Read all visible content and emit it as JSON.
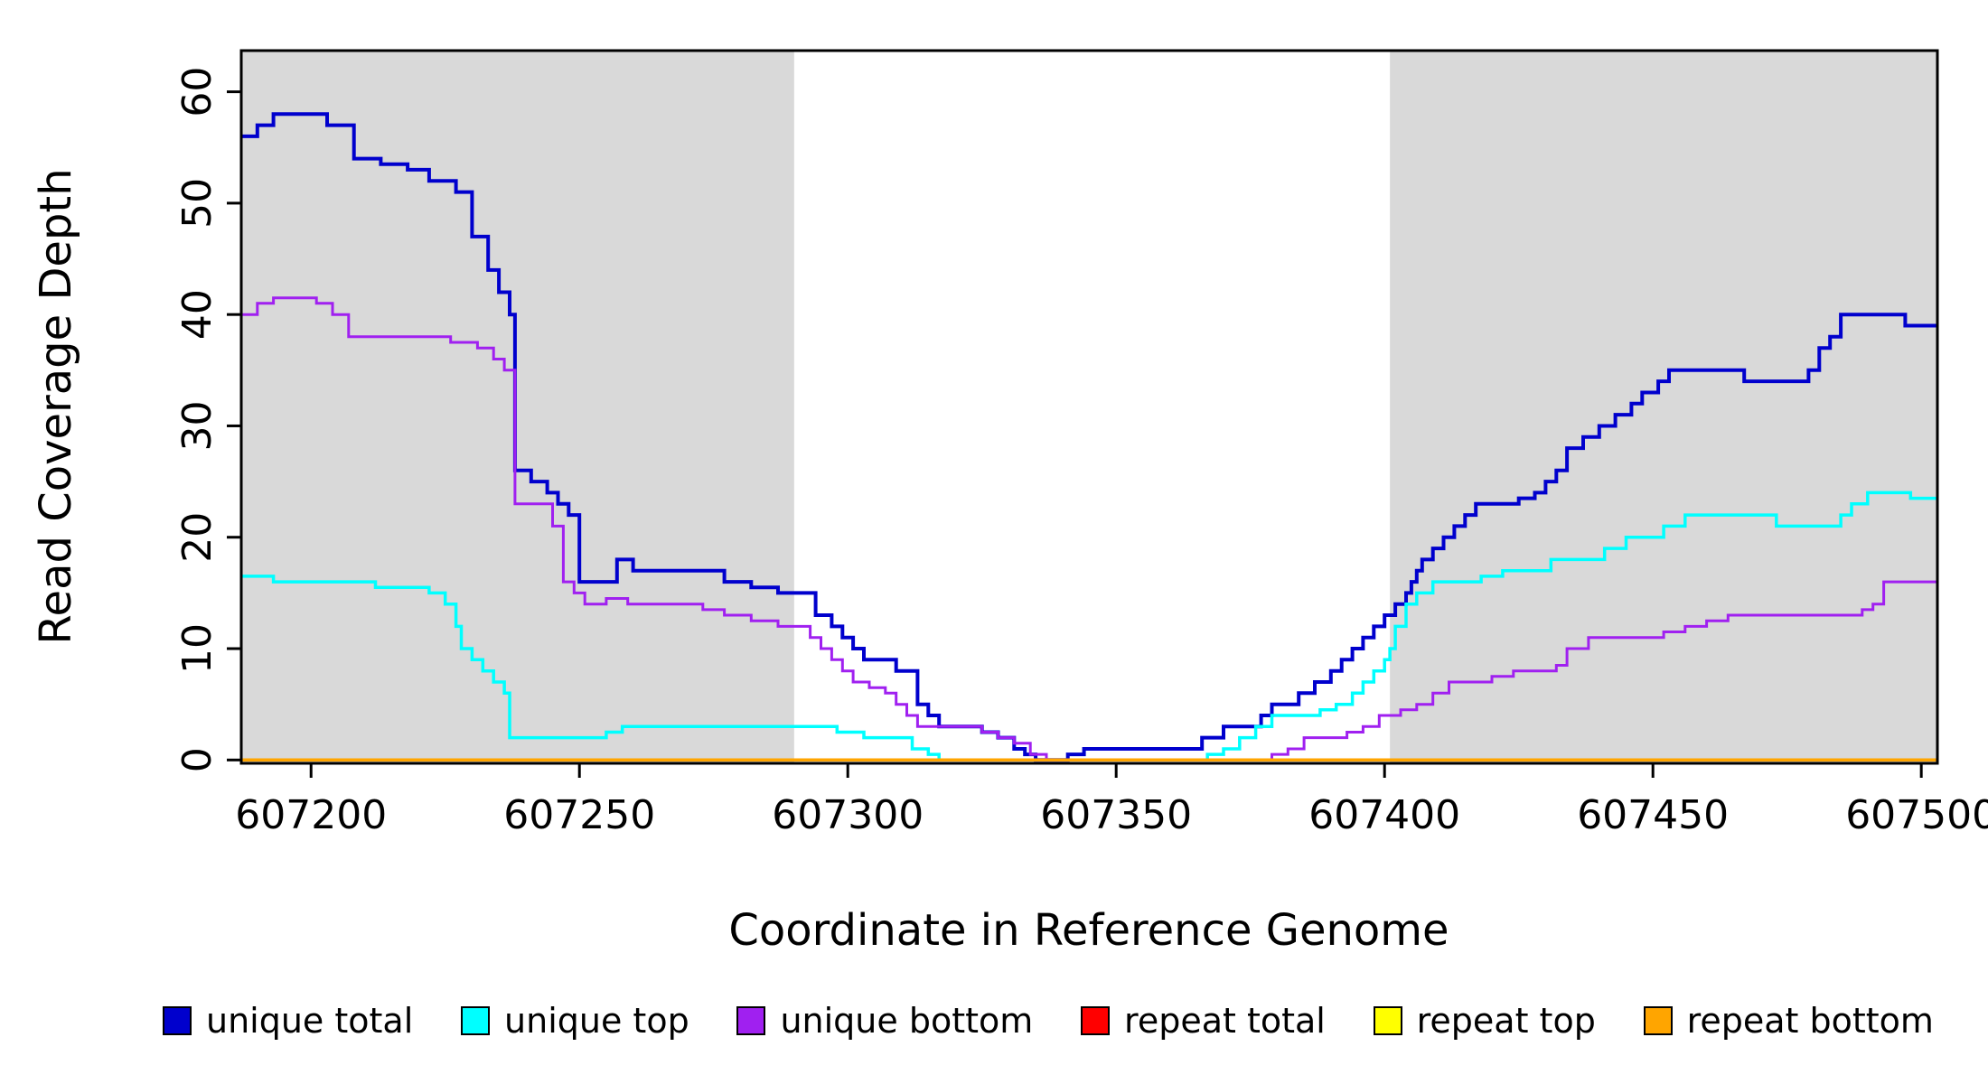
{
  "axes": {
    "xlabel": "Coordinate in Reference Genome",
    "ylabel": "Read Coverage Depth"
  },
  "colors": {
    "background": "#ffffff",
    "shaded_region": "#d9d9d9",
    "box": "#000000"
  },
  "chart_data": {
    "type": "line",
    "style": "step",
    "title": "",
    "xlabel": "Coordinate in Reference Genome",
    "ylabel": "Read Coverage Depth",
    "xlim": [
      607187,
      607503
    ],
    "ylim": [
      0,
      60
    ],
    "x_range_draw": [
      607187,
      607503
    ],
    "y_range_draw": [
      -0.3,
      63.7
    ],
    "xticks": [
      607200,
      607250,
      607300,
      607350,
      607400,
      607450,
      607500
    ],
    "yticks": [
      0,
      10,
      20,
      30,
      40,
      50,
      60
    ],
    "grid": false,
    "shaded_regions": [
      {
        "x0": 607187,
        "x1": 607290,
        "color": "#d9d9d9"
      },
      {
        "x0": 607401,
        "x1": 607503,
        "color": "#d9d9d9"
      }
    ],
    "series": [
      {
        "name": "unique total",
        "color": "#0000CD",
        "lw": 4,
        "points": [
          [
            607187,
            56
          ],
          [
            607190,
            57
          ],
          [
            607193,
            58
          ],
          [
            607200,
            58
          ],
          [
            607203,
            57
          ],
          [
            607208,
            54
          ],
          [
            607213,
            53.5
          ],
          [
            607218,
            53
          ],
          [
            607222,
            52
          ],
          [
            607227,
            51
          ],
          [
            607230,
            47
          ],
          [
            607233,
            44
          ],
          [
            607235,
            42
          ],
          [
            607237,
            40
          ],
          [
            607238,
            26
          ],
          [
            607241,
            25
          ],
          [
            607244,
            24
          ],
          [
            607246,
            23
          ],
          [
            607248,
            22
          ],
          [
            607250,
            16
          ],
          [
            607256,
            16
          ],
          [
            607257,
            18
          ],
          [
            607260,
            17
          ],
          [
            607268,
            17
          ],
          [
            607273,
            17
          ],
          [
            607277,
            16
          ],
          [
            607282,
            15.5
          ],
          [
            607287,
            15
          ],
          [
            607292,
            15
          ],
          [
            607294,
            13
          ],
          [
            607297,
            12
          ],
          [
            607299,
            11
          ],
          [
            607301,
            10
          ],
          [
            607303,
            9
          ],
          [
            607307,
            9
          ],
          [
            607309,
            8
          ],
          [
            607311,
            8
          ],
          [
            607313,
            5
          ],
          [
            607315,
            4
          ],
          [
            607317,
            3
          ],
          [
            607321,
            3
          ],
          [
            607325,
            2.5
          ],
          [
            607328,
            2
          ],
          [
            607331,
            1
          ],
          [
            607333,
            0.5
          ],
          [
            607335,
            0
          ],
          [
            607341,
            0.5
          ],
          [
            607344,
            1
          ],
          [
            607352,
            1
          ],
          [
            607360,
            1
          ],
          [
            607366,
            2
          ],
          [
            607370,
            3
          ],
          [
            607374,
            3
          ],
          [
            607377,
            4
          ],
          [
            607379,
            5
          ],
          [
            607382,
            5
          ],
          [
            607384,
            6
          ],
          [
            607387,
            7
          ],
          [
            607390,
            8
          ],
          [
            607392,
            9
          ],
          [
            607394,
            10
          ],
          [
            607396,
            11
          ],
          [
            607398,
            12
          ],
          [
            607400,
            13
          ],
          [
            607402,
            14
          ],
          [
            607404,
            15
          ],
          [
            607405,
            16
          ],
          [
            607406,
            17
          ],
          [
            607407,
            18
          ],
          [
            607409,
            19
          ],
          [
            607411,
            20
          ],
          [
            607413,
            21
          ],
          [
            607415,
            22
          ],
          [
            607417,
            23
          ],
          [
            607421,
            23
          ],
          [
            607425,
            23.5
          ],
          [
            607428,
            24
          ],
          [
            607430,
            25
          ],
          [
            607432,
            26
          ],
          [
            607434,
            28
          ],
          [
            607437,
            29
          ],
          [
            607440,
            30
          ],
          [
            607443,
            31
          ],
          [
            607446,
            32
          ],
          [
            607448,
            33
          ],
          [
            607451,
            34
          ],
          [
            607453,
            35
          ],
          [
            607458,
            35
          ],
          [
            607463,
            35
          ],
          [
            607467,
            34
          ],
          [
            607472,
            34
          ],
          [
            607476,
            34
          ],
          [
            607479,
            35
          ],
          [
            607481,
            37
          ],
          [
            607483,
            38
          ],
          [
            607485,
            40
          ],
          [
            607490,
            40
          ],
          [
            607495,
            40
          ],
          [
            607497,
            39
          ],
          [
            607503,
            39
          ]
        ]
      },
      {
        "name": "unique top",
        "color": "#00FFFF",
        "lw": 3.5,
        "points": [
          [
            607187,
            16.5
          ],
          [
            607193,
            16
          ],
          [
            607200,
            16
          ],
          [
            607207,
            16
          ],
          [
            607212,
            15.5
          ],
          [
            607218,
            15.5
          ],
          [
            607222,
            15
          ],
          [
            607225,
            14
          ],
          [
            607227,
            12
          ],
          [
            607228,
            10
          ],
          [
            607230,
            9
          ],
          [
            607232,
            8
          ],
          [
            607234,
            7
          ],
          [
            607236,
            6
          ],
          [
            607237,
            2
          ],
          [
            607244,
            2
          ],
          [
            607250,
            2
          ],
          [
            607255,
            2.5
          ],
          [
            607258,
            3
          ],
          [
            607265,
            3
          ],
          [
            607272,
            3
          ],
          [
            607280,
            3
          ],
          [
            607288,
            3
          ],
          [
            607294,
            3
          ],
          [
            607298,
            2.5
          ],
          [
            607303,
            2
          ],
          [
            607308,
            2
          ],
          [
            607312,
            1
          ],
          [
            607315,
            0.5
          ],
          [
            607317,
            0
          ],
          [
            607330,
            0
          ],
          [
            607345,
            0
          ],
          [
            607358,
            0
          ],
          [
            607367,
            0.5
          ],
          [
            607370,
            1
          ],
          [
            607373,
            2
          ],
          [
            607376,
            3
          ],
          [
            607379,
            4
          ],
          [
            607384,
            4
          ],
          [
            607388,
            4.5
          ],
          [
            607391,
            5
          ],
          [
            607394,
            6
          ],
          [
            607396,
            7
          ],
          [
            607398,
            8
          ],
          [
            607400,
            9
          ],
          [
            607401,
            10
          ],
          [
            607402,
            12
          ],
          [
            607404,
            14
          ],
          [
            607406,
            15
          ],
          [
            607409,
            16
          ],
          [
            607414,
            16
          ],
          [
            607418,
            16.5
          ],
          [
            607422,
            17
          ],
          [
            607427,
            17
          ],
          [
            607431,
            18
          ],
          [
            607436,
            18
          ],
          [
            607441,
            19
          ],
          [
            607445,
            20
          ],
          [
            607449,
            20
          ],
          [
            607452,
            21
          ],
          [
            607456,
            22
          ],
          [
            607461,
            22
          ],
          [
            607466,
            22
          ],
          [
            607470,
            22
          ],
          [
            607473,
            21
          ],
          [
            607478,
            21
          ],
          [
            607482,
            21
          ],
          [
            607485,
            22
          ],
          [
            607487,
            23
          ],
          [
            607490,
            24
          ],
          [
            607494,
            24
          ],
          [
            607498,
            23.5
          ],
          [
            607503,
            23.5
          ]
        ]
      },
      {
        "name": "unique bottom",
        "color": "#A020F0",
        "lw": 3,
        "points": [
          [
            607187,
            40
          ],
          [
            607190,
            41
          ],
          [
            607193,
            41.5
          ],
          [
            607198,
            41.5
          ],
          [
            607201,
            41
          ],
          [
            607204,
            40
          ],
          [
            607207,
            38
          ],
          [
            607214,
            38
          ],
          [
            607220,
            38
          ],
          [
            607226,
            37.5
          ],
          [
            607231,
            37
          ],
          [
            607234,
            36
          ],
          [
            607236,
            35
          ],
          [
            607238,
            23
          ],
          [
            607242,
            23
          ],
          [
            607245,
            21
          ],
          [
            607247,
            16
          ],
          [
            607249,
            15
          ],
          [
            607251,
            14
          ],
          [
            607255,
            14.5
          ],
          [
            607259,
            14
          ],
          [
            607264,
            14
          ],
          [
            607269,
            14
          ],
          [
            607273,
            13.5
          ],
          [
            607277,
            13
          ],
          [
            607282,
            12.5
          ],
          [
            607287,
            12
          ],
          [
            607292,
            12
          ],
          [
            607293,
            11
          ],
          [
            607295,
            10
          ],
          [
            607297,
            9
          ],
          [
            607299,
            8
          ],
          [
            607301,
            7
          ],
          [
            607304,
            6.5
          ],
          [
            607307,
            6
          ],
          [
            607309,
            5
          ],
          [
            607311,
            4
          ],
          [
            607313,
            3
          ],
          [
            607318,
            3
          ],
          [
            607322,
            3
          ],
          [
            607325,
            2.5
          ],
          [
            607328,
            2
          ],
          [
            607331,
            1.5
          ],
          [
            607334,
            0.5
          ],
          [
            607337,
            0
          ],
          [
            607350,
            0
          ],
          [
            607365,
            0
          ],
          [
            607376,
            0
          ],
          [
            607379,
            0.5
          ],
          [
            607382,
            1
          ],
          [
            607385,
            2
          ],
          [
            607390,
            2
          ],
          [
            607393,
            2.5
          ],
          [
            607396,
            3
          ],
          [
            607399,
            4
          ],
          [
            607403,
            4.5
          ],
          [
            607406,
            5
          ],
          [
            607409,
            6
          ],
          [
            607412,
            7
          ],
          [
            607416,
            7
          ],
          [
            607420,
            7.5
          ],
          [
            607424,
            8
          ],
          [
            607429,
            8
          ],
          [
            607432,
            8.5
          ],
          [
            607434,
            10
          ],
          [
            607438,
            11
          ],
          [
            607443,
            11
          ],
          [
            607448,
            11
          ],
          [
            607452,
            11.5
          ],
          [
            607456,
            12
          ],
          [
            607460,
            12.5
          ],
          [
            607464,
            13
          ],
          [
            607469,
            13
          ],
          [
            607475,
            13
          ],
          [
            607481,
            13
          ],
          [
            607486,
            13
          ],
          [
            607489,
            13.5
          ],
          [
            607491,
            14
          ],
          [
            607493,
            16
          ],
          [
            607498,
            16
          ],
          [
            607503,
            16
          ]
        ]
      },
      {
        "name": "repeat total",
        "color": "#FF0000",
        "lw": 3.5,
        "points": [
          [
            607187,
            0
          ],
          [
            607503,
            0
          ]
        ]
      },
      {
        "name": "repeat top",
        "color": "#FFFF00",
        "lw": 3.5,
        "points": [
          [
            607187,
            0
          ],
          [
            607503,
            0
          ]
        ]
      },
      {
        "name": "repeat bottom",
        "color": "#FFA500",
        "lw": 3.5,
        "points": [
          [
            607187,
            0
          ],
          [
            607503,
            0
          ]
        ]
      }
    ],
    "legend": {
      "position": "bottom",
      "entries": [
        {
          "label": "unique total",
          "color": "#0000CD"
        },
        {
          "label": "unique top",
          "color": "#00FFFF"
        },
        {
          "label": "unique bottom",
          "color": "#A020F0"
        },
        {
          "label": "repeat total",
          "color": "#FF0000"
        },
        {
          "label": "repeat top",
          "color": "#FFFF00"
        },
        {
          "label": "repeat bottom",
          "color": "#FFA500"
        }
      ]
    }
  }
}
